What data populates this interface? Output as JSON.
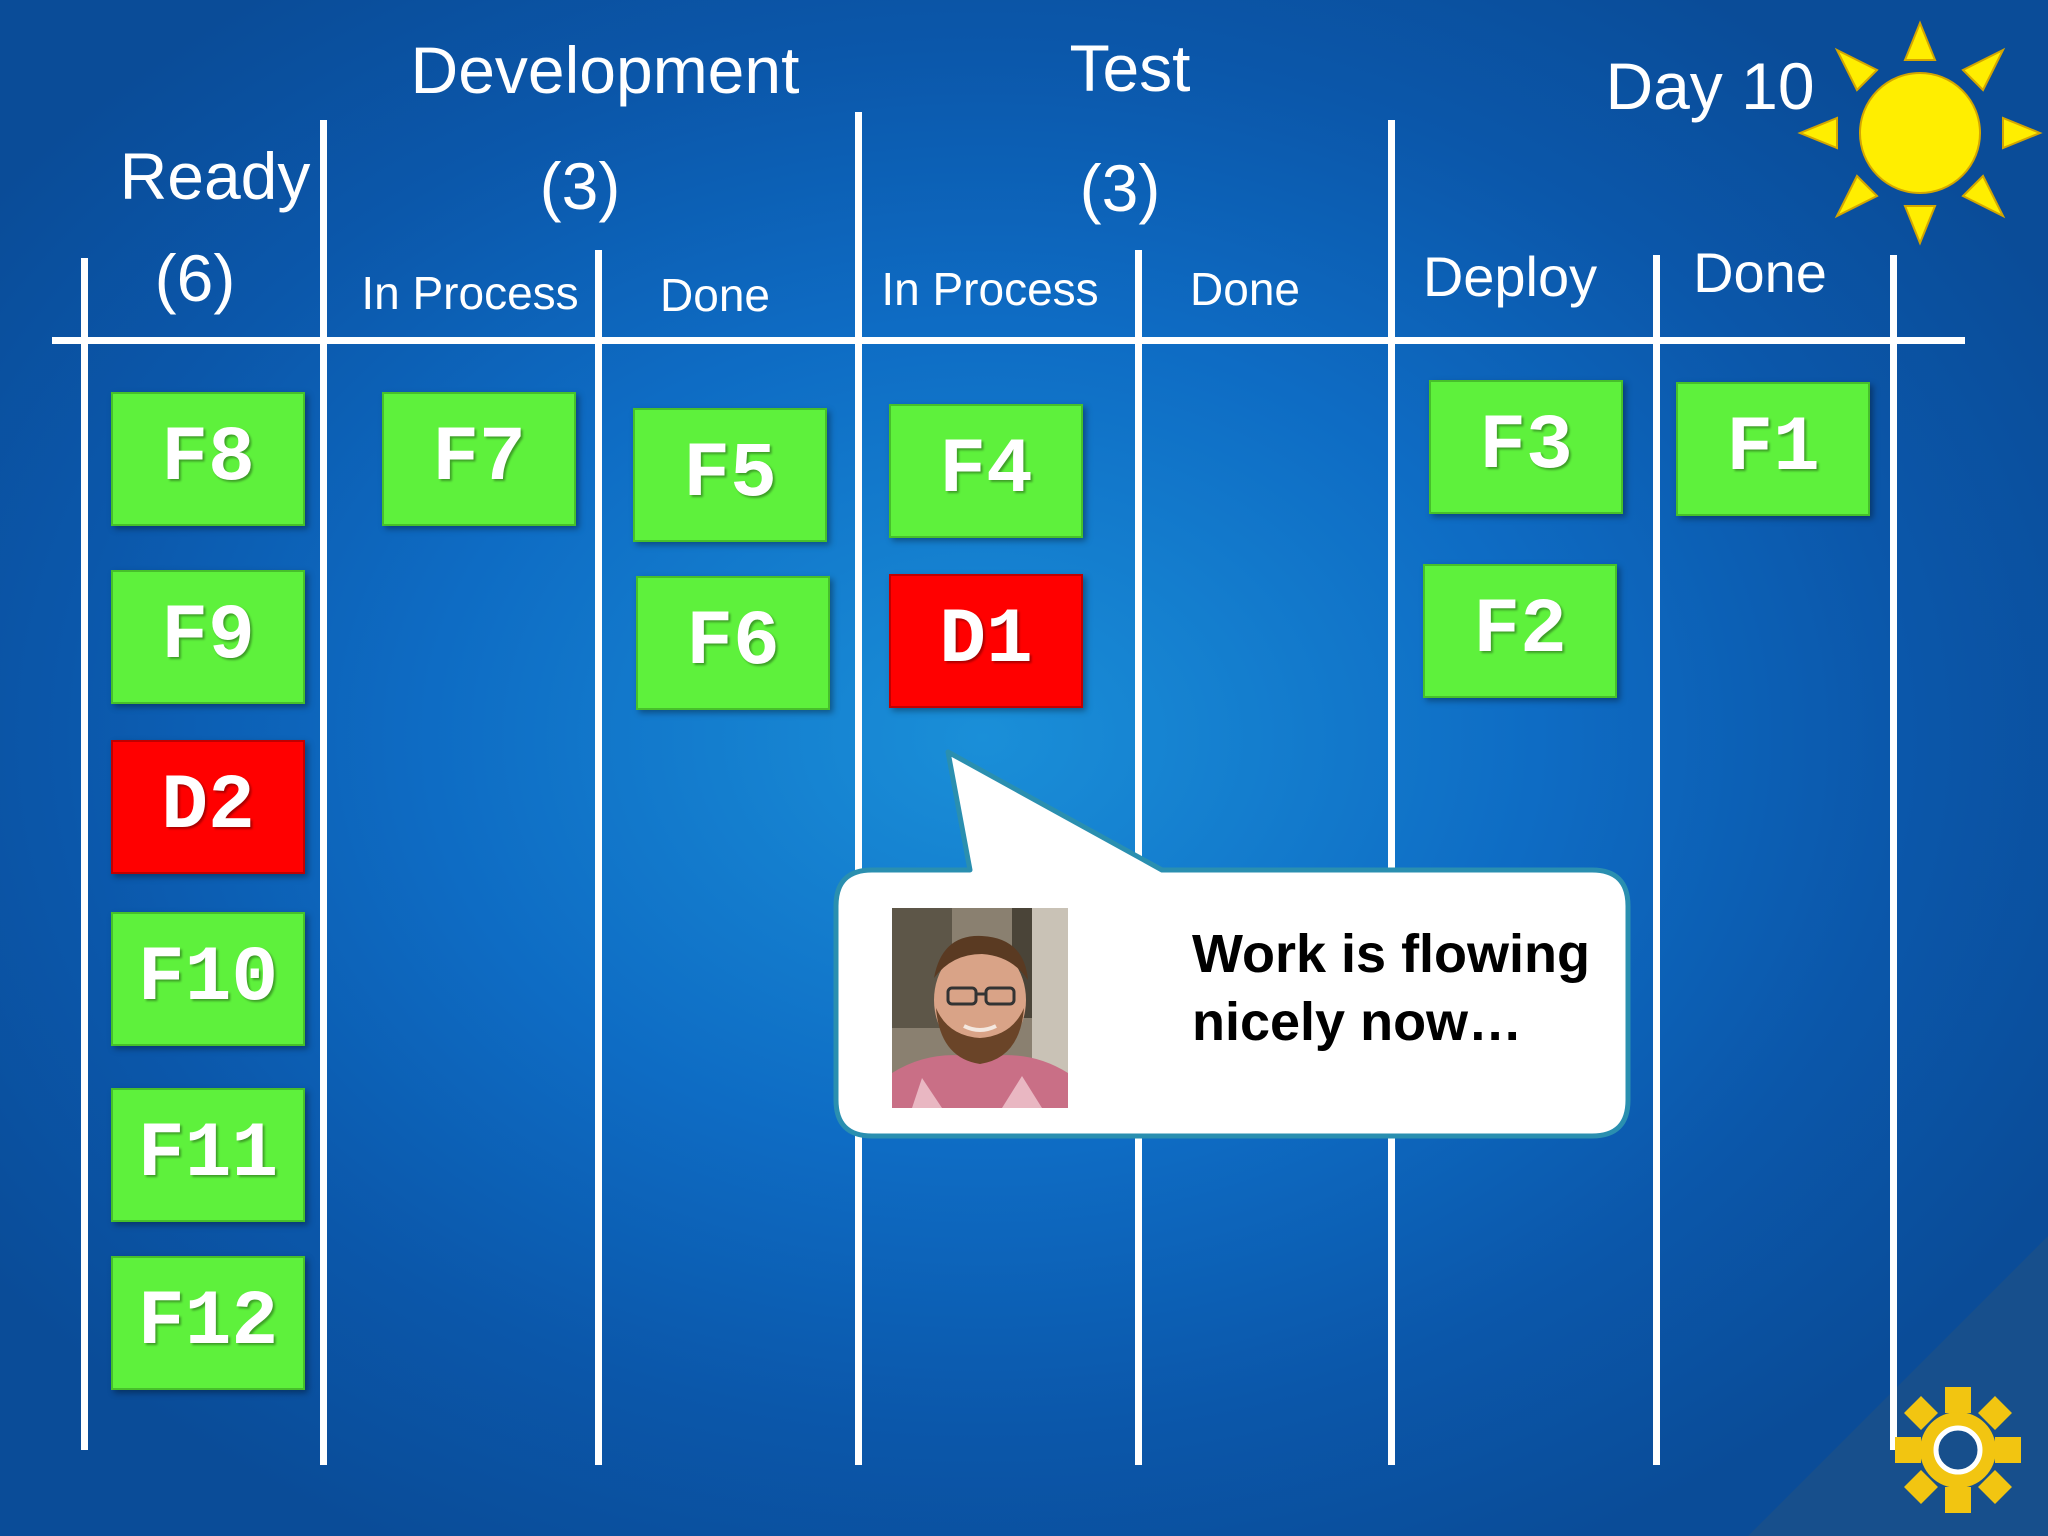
{
  "headers": {
    "ready": [
      "Ready",
      "(6)"
    ],
    "development": [
      "Development",
      "(3)"
    ],
    "test": [
      "Test",
      "(3)"
    ],
    "day": "Day 10",
    "dev_in_process": "In Process",
    "dev_done": "Done",
    "test_in_process": "In Process",
    "test_done": "Done",
    "deploy": "Deploy",
    "done": "Done"
  },
  "columns": {
    "ready": [
      {
        "label": "F8",
        "type": "feature"
      },
      {
        "label": "F9",
        "type": "feature"
      },
      {
        "label": "D2",
        "type": "defect"
      },
      {
        "label": "F10",
        "type": "feature"
      },
      {
        "label": "F11",
        "type": "feature"
      },
      {
        "label": "F12",
        "type": "feature"
      }
    ],
    "dev_in_process": [
      {
        "label": "F7",
        "type": "feature"
      }
    ],
    "dev_done": [
      {
        "label": "F5",
        "type": "feature"
      },
      {
        "label": "F6",
        "type": "feature"
      }
    ],
    "test_in_process": [
      {
        "label": "F4",
        "type": "feature"
      },
      {
        "label": "D1",
        "type": "defect"
      }
    ],
    "test_done": [],
    "deploy": [
      {
        "label": "F3",
        "type": "feature"
      },
      {
        "label": "F2",
        "type": "feature"
      }
    ],
    "done": [
      {
        "label": "F1",
        "type": "feature"
      }
    ]
  },
  "callout": {
    "lines": [
      "Work is flowing",
      "nicely now…"
    ]
  },
  "colors": {
    "feature": "#5ef13c",
    "defect": "#ff0000",
    "background": "#0e6cc4",
    "sun": "#ffee00"
  },
  "icons": [
    "sun-icon",
    "avatar",
    "logo-sun-icon"
  ]
}
